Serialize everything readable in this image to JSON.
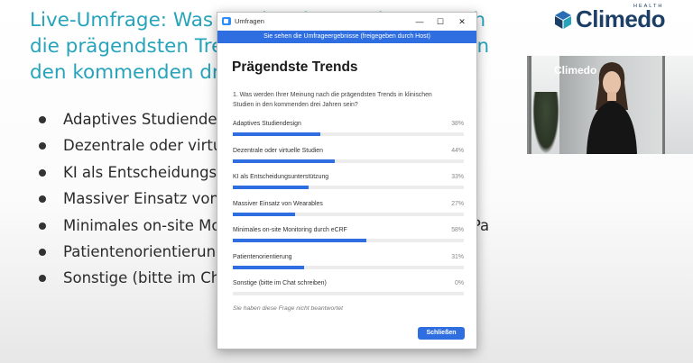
{
  "slide": {
    "title": "Live-Umfrage: Was werden Ihrer Meinung nach\ndie prägendsten Trends in klinischen Studien in\nden kommenden drei Jahren sein?",
    "bullets": [
      "Adaptives Studiendesign",
      "Dezentrale oder virtuelle Studien",
      "KI als Entscheidungsunterstützung",
      "Massiver Einsatz von Wearables",
      "Minimales on-site Monitoring durch Integration in die ePa",
      "Patientenorientierung",
      "Sonstige (bitte im Chat schreiben)"
    ],
    "bullet_trailing_visible": "n in die ePa"
  },
  "logo": {
    "text": "Climedo",
    "tagline": "HEALTH"
  },
  "video": {
    "logo_text": "Climedo"
  },
  "dialog": {
    "window_title": "Umfragen",
    "banner": "Sie sehen die Umfrageergebnisse (freigegeben durch Host)",
    "heading": "Prägendste Trends",
    "question": "1. Was werden Ihrer Meinung nach die prägendsten Trends in klinischen Studien in den kommenden drei Jahren sein?",
    "options": [
      {
        "label": "Adaptives Studiendesign",
        "percent": "38%",
        "value": 38
      },
      {
        "label": "Dezentrale oder virtuelle Studien",
        "percent": "44%",
        "value": 44
      },
      {
        "label": "KI als Entscheidungsunterstützung",
        "percent": "33%",
        "value": 33
      },
      {
        "label": "Massiver Einsatz von Wearables",
        "percent": "27%",
        "value": 27
      },
      {
        "label": "Minimales on-site Monitoring durch eCRF",
        "percent": "58%",
        "value": 58
      },
      {
        "label": "Patientenorientierung",
        "percent": "31%",
        "value": 31
      },
      {
        "label": "Sonstige (bitte im Chat schreiben)",
        "percent": "0%",
        "value": 0
      }
    ],
    "note": "Sie haben diese Frage nicht beantwortet",
    "close_label": "Schließen",
    "minimize_glyph": "—",
    "maximize_glyph": "☐",
    "close_glyph": "✕"
  },
  "colors": {
    "accent": "#2e6ee0",
    "title_teal": "#27a4bb",
    "logo_navy": "#1b3f66"
  }
}
